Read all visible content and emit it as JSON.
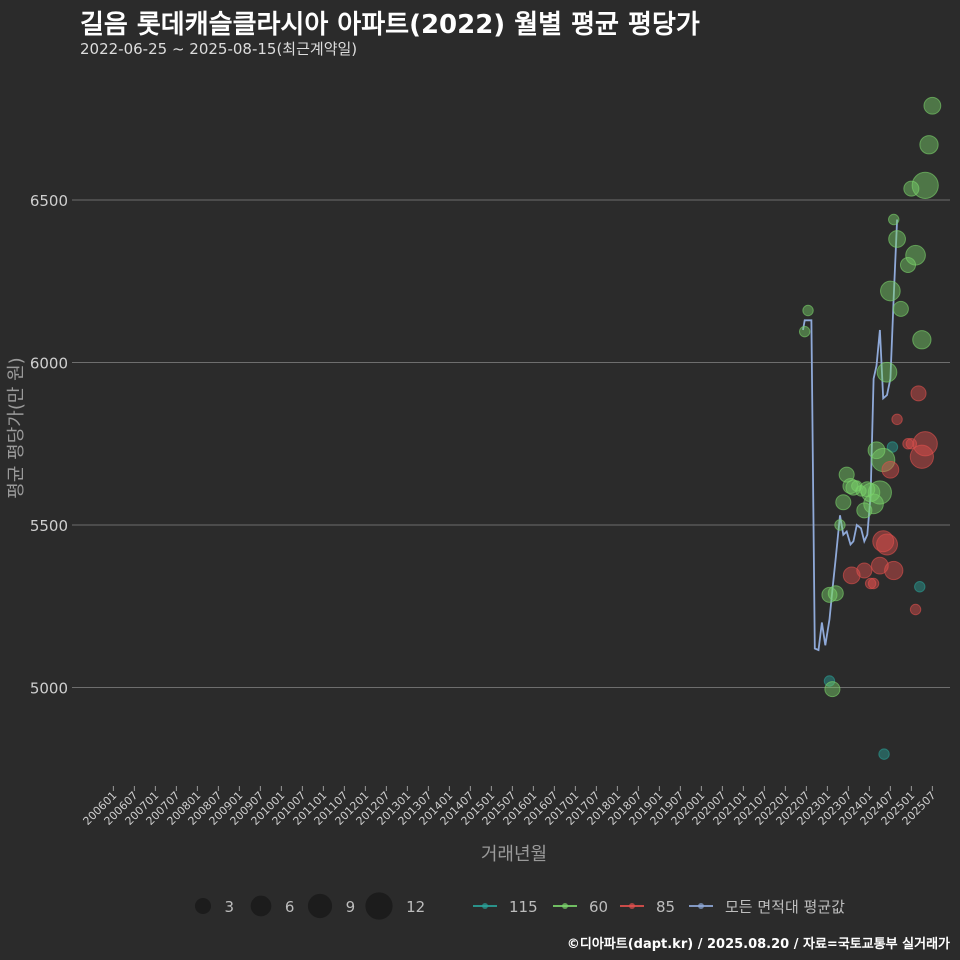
{
  "title": "길음 롯데캐슬클라시아 아파트(2022) 월별 평균 평당가",
  "subtitle": "2022-06-25 ~ 2025-08-15(최근계약일)",
  "caption": "©디아파트(dapt.kr) / 2025.08.20 / 자료=국토교통부 실거래가",
  "colors": {
    "background": "#2b2b2b",
    "gridline": "#6e6e6e",
    "series_115": "#2aa198",
    "series_60": "#7bd36b",
    "series_85": "#e0504d",
    "series_avg": "#8fa9d8"
  },
  "chart_data": {
    "type": "scatter",
    "xlabel": "거래년월",
    "ylabel": "평균 평당가(만 원)",
    "ylim": [
      4700,
      6900
    ],
    "yticks": [
      5000,
      5500,
      6000,
      6500
    ],
    "xlim": [
      2005.92,
      2025.92
    ],
    "xtick_labels": [
      "200601",
      "200607",
      "200701",
      "200707",
      "200801",
      "200807",
      "200901",
      "200907",
      "201001",
      "201007",
      "201101",
      "201107",
      "201201",
      "201207",
      "201301",
      "201307",
      "201401",
      "201407",
      "201501",
      "201507",
      "201601",
      "201607",
      "201701",
      "201707",
      "201801",
      "201807",
      "201901",
      "201907",
      "202001",
      "202007",
      "202101",
      "202107",
      "202201",
      "202207",
      "202301",
      "202307",
      "202401",
      "202407",
      "202501",
      "202507"
    ],
    "size_legend": {
      "title": "",
      "values": [
        3,
        6,
        9,
        12
      ]
    },
    "series": [
      {
        "name": "115",
        "color": "#2aa198",
        "points": [
          {
            "x": 2023.05,
            "y": 5020,
            "size": 1
          },
          {
            "x": 2024.35,
            "y": 4795,
            "size": 1
          },
          {
            "x": 2024.55,
            "y": 5740,
            "size": 1
          },
          {
            "x": 2025.2,
            "y": 5310,
            "size": 1
          }
        ]
      },
      {
        "name": "60",
        "color": "#7bd36b",
        "points": [
          {
            "x": 2022.46,
            "y": 6095,
            "size": 1
          },
          {
            "x": 2022.54,
            "y": 6160,
            "size": 1
          },
          {
            "x": 2023.05,
            "y": 5285,
            "size": 3
          },
          {
            "x": 2023.12,
            "y": 4995,
            "size": 3
          },
          {
            "x": 2023.2,
            "y": 5290,
            "size": 3
          },
          {
            "x": 2023.3,
            "y": 5500,
            "size": 1
          },
          {
            "x": 2023.38,
            "y": 5570,
            "size": 3
          },
          {
            "x": 2023.46,
            "y": 5655,
            "size": 3
          },
          {
            "x": 2023.55,
            "y": 5620,
            "size": 3
          },
          {
            "x": 2023.62,
            "y": 5615,
            "size": 3
          },
          {
            "x": 2023.7,
            "y": 5620,
            "size": 1
          },
          {
            "x": 2023.8,
            "y": 5605,
            "size": 1
          },
          {
            "x": 2023.88,
            "y": 5545,
            "size": 3
          },
          {
            "x": 2023.95,
            "y": 5610,
            "size": 3
          },
          {
            "x": 2024.03,
            "y": 5600,
            "size": 5
          },
          {
            "x": 2024.1,
            "y": 5565,
            "size": 6
          },
          {
            "x": 2024.17,
            "y": 5730,
            "size": 4
          },
          {
            "x": 2024.25,
            "y": 5600,
            "size": 9
          },
          {
            "x": 2024.33,
            "y": 5700,
            "size": 9
          },
          {
            "x": 2024.42,
            "y": 5970,
            "size": 6
          },
          {
            "x": 2024.5,
            "y": 6220,
            "size": 6
          },
          {
            "x": 2024.58,
            "y": 6440,
            "size": 1
          },
          {
            "x": 2024.66,
            "y": 6380,
            "size": 4
          },
          {
            "x": 2024.75,
            "y": 6165,
            "size": 3
          },
          {
            "x": 2024.92,
            "y": 6300,
            "size": 3
          },
          {
            "x": 2025.0,
            "y": 6535,
            "size": 3
          },
          {
            "x": 2025.1,
            "y": 6330,
            "size": 6
          },
          {
            "x": 2025.25,
            "y": 6070,
            "size": 5
          },
          {
            "x": 2025.33,
            "y": 6545,
            "size": 12
          },
          {
            "x": 2025.42,
            "y": 6670,
            "size": 5
          },
          {
            "x": 2025.5,
            "y": 6790,
            "size": 4
          }
        ]
      },
      {
        "name": "85",
        "color": "#e0504d",
        "points": [
          {
            "x": 2023.58,
            "y": 5345,
            "size": 4
          },
          {
            "x": 2023.88,
            "y": 5360,
            "size": 3
          },
          {
            "x": 2024.03,
            "y": 5320,
            "size": 1
          },
          {
            "x": 2024.1,
            "y": 5320,
            "size": 1
          },
          {
            "x": 2024.25,
            "y": 5375,
            "size": 4
          },
          {
            "x": 2024.33,
            "y": 5450,
            "size": 7
          },
          {
            "x": 2024.42,
            "y": 5440,
            "size": 7
          },
          {
            "x": 2024.5,
            "y": 5670,
            "size": 4
          },
          {
            "x": 2024.58,
            "y": 5360,
            "size": 5
          },
          {
            "x": 2024.66,
            "y": 5825,
            "size": 1
          },
          {
            "x": 2024.92,
            "y": 5750,
            "size": 1
          },
          {
            "x": 2025.0,
            "y": 5750,
            "size": 1
          },
          {
            "x": 2025.1,
            "y": 5240,
            "size": 1
          },
          {
            "x": 2025.17,
            "y": 5905,
            "size": 3
          },
          {
            "x": 2025.33,
            "y": 5750,
            "size": 10
          },
          {
            "x": 2025.25,
            "y": 5710,
            "size": 9
          }
        ]
      }
    ],
    "average_line": {
      "name": "모든 면적대 평균값",
      "color": "#8fa9d8",
      "points": [
        {
          "x": 2022.42,
          "y": 6100
        },
        {
          "x": 2022.46,
          "y": 6130
        },
        {
          "x": 2022.54,
          "y": 6130
        },
        {
          "x": 2022.62,
          "y": 6130
        },
        {
          "x": 2022.7,
          "y": 5120
        },
        {
          "x": 2022.79,
          "y": 5115
        },
        {
          "x": 2022.87,
          "y": 5200
        },
        {
          "x": 2022.95,
          "y": 5130
        },
        {
          "x": 2023.05,
          "y": 5210
        },
        {
          "x": 2023.12,
          "y": 5300
        },
        {
          "x": 2023.2,
          "y": 5400
        },
        {
          "x": 2023.3,
          "y": 5530
        },
        {
          "x": 2023.38,
          "y": 5470
        },
        {
          "x": 2023.46,
          "y": 5480
        },
        {
          "x": 2023.55,
          "y": 5440
        },
        {
          "x": 2023.62,
          "y": 5450
        },
        {
          "x": 2023.7,
          "y": 5500
        },
        {
          "x": 2023.8,
          "y": 5490
        },
        {
          "x": 2023.88,
          "y": 5450
        },
        {
          "x": 2023.95,
          "y": 5470
        },
        {
          "x": 2024.03,
          "y": 5590
        },
        {
          "x": 2024.1,
          "y": 5950
        },
        {
          "x": 2024.17,
          "y": 5990
        },
        {
          "x": 2024.25,
          "y": 6100
        },
        {
          "x": 2024.33,
          "y": 5890
        },
        {
          "x": 2024.42,
          "y": 5900
        },
        {
          "x": 2024.5,
          "y": 5950
        },
        {
          "x": 2024.58,
          "y": 6200
        },
        {
          "x": 2024.66,
          "y": 6440
        }
      ]
    },
    "legend": {
      "placement": "bottom",
      "size_labels": [
        "3",
        "6",
        "9",
        "12"
      ],
      "series_labels": [
        "115",
        "60",
        "85",
        "모든 면적대 평균값"
      ]
    }
  }
}
